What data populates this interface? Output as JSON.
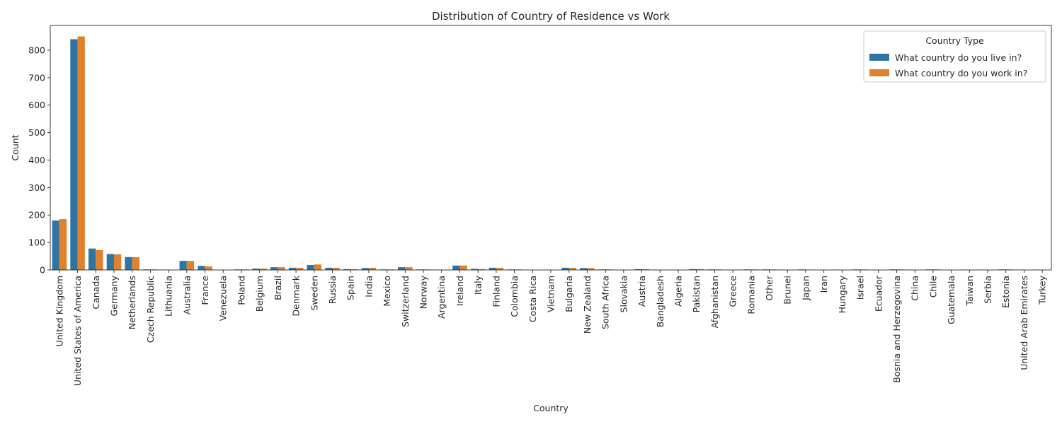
{
  "chart_data": {
    "type": "bar",
    "title": "Distribution of Country of Residence vs Work",
    "xlabel": "Country",
    "ylabel": "Count",
    "ylim": [
      0,
      890
    ],
    "yticks": [
      0,
      100,
      200,
      300,
      400,
      500,
      600,
      700,
      800
    ],
    "grid": false,
    "legend": {
      "title": "Country Type",
      "position": "top-right"
    },
    "categories": [
      "United Kingdom",
      "United States of America",
      "Canada",
      "Germany",
      "Netherlands",
      "Czech Republic",
      "Lithuania",
      "Australia",
      "France",
      "Venezuela",
      "Poland",
      "Belgium",
      "Brazil",
      "Denmark",
      "Sweden",
      "Russia",
      "Spain",
      "India",
      "Mexico",
      "Switzerland",
      "Norway",
      "Argentina",
      "Ireland",
      "Italy",
      "Finland",
      "Colombia",
      "Costa Rica",
      "Vietnam",
      "Bulgaria",
      "New Zealand",
      "South Africa",
      "Slovakia",
      "Austria",
      "Bangladesh",
      "Algeria",
      "Pakistan",
      "Afghanistan",
      "Greece",
      "Romania",
      "Other",
      "Brunei",
      "Japan",
      "Iran",
      "Hungary",
      "Israel",
      "Ecuador",
      "Bosnia and Herzegovina",
      "China",
      "Chile",
      "Guatemala",
      "Taiwan",
      "Serbia",
      "Estonia",
      "United Arab Emirates",
      "Turkey"
    ],
    "series": [
      {
        "name": "What country do you live in?",
        "color": "#3274a1",
        "values": [
          180,
          840,
          78,
          58,
          47,
          2,
          1,
          33,
          15,
          1,
          2,
          5,
          10,
          8,
          18,
          8,
          3,
          7,
          2,
          10,
          2,
          1,
          16,
          4,
          8,
          2,
          1,
          1,
          8,
          7,
          2,
          1,
          3,
          1,
          1,
          3,
          2,
          1,
          2,
          2,
          1,
          2,
          1,
          1,
          2,
          1,
          2,
          1,
          2,
          1,
          1,
          1,
          2,
          1,
          1
        ]
      },
      {
        "name": "What country do you work in?",
        "color": "#e1812c",
        "values": [
          185,
          850,
          72,
          57,
          47,
          2,
          0,
          33,
          13,
          0,
          2,
          5,
          10,
          8,
          20,
          8,
          3,
          8,
          2,
          10,
          2,
          0,
          16,
          3,
          8,
          2,
          0,
          0,
          8,
          7,
          2,
          0,
          3,
          0,
          0,
          3,
          2,
          0,
          2,
          2,
          0,
          1,
          0,
          0,
          2,
          0,
          2,
          0,
          2,
          0,
          0,
          0,
          2,
          0,
          0
        ]
      }
    ]
  }
}
